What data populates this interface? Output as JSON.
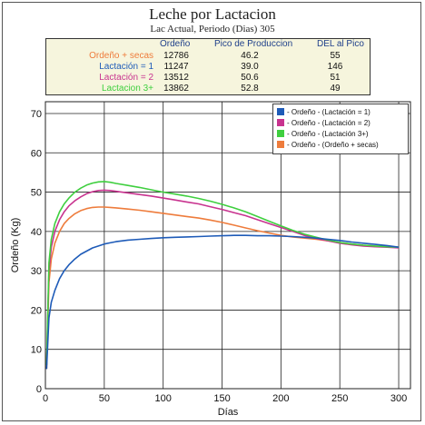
{
  "title": "Leche por Lactacion",
  "subtitle": "Lac Actual, Periodo (Dias) 305",
  "summary": {
    "headers": [
      "Ordeño",
      "Pico de Produccion",
      "DEL al Pico"
    ],
    "rows": [
      {
        "label": "Ordeño + secas",
        "color": "#ee7c3c",
        "ordeno": "12786",
        "pico": "46.2",
        "del": "55"
      },
      {
        "label": "Lactación = 1",
        "color": "#1e5bb8",
        "ordeno": "11247",
        "pico": "39.0",
        "del": "146"
      },
      {
        "label": "Lactación = 2",
        "color": "#c8338f",
        "ordeno": "13512",
        "pico": "50.6",
        "del": "51"
      },
      {
        "label": "Lactacion 3+",
        "color": "#3fcf3f",
        "ordeno": "13862",
        "pico": "52.8",
        "del": "49"
      }
    ]
  },
  "chart_data": {
    "type": "line",
    "xlabel": "Días",
    "ylabel": "Ordeño  (Kg)",
    "xlim": [
      0,
      310
    ],
    "ylim": [
      0,
      73
    ],
    "xticks": [
      0,
      50,
      100,
      150,
      200,
      250,
      300
    ],
    "yticks": [
      0,
      10,
      20,
      30,
      40,
      50,
      60,
      70
    ],
    "grid": true,
    "legend_position": "top-right",
    "x": [
      1,
      3,
      5,
      8,
      12,
      16,
      20,
      25,
      30,
      35,
      40,
      45,
      50,
      55,
      60,
      70,
      80,
      90,
      100,
      110,
      120,
      130,
      140,
      150,
      160,
      170,
      180,
      190,
      200,
      210,
      220,
      230,
      240,
      250,
      260,
      270,
      280,
      290,
      300
    ],
    "series": [
      {
        "name": "- Ordeño - (Lactación = 1)",
        "color": "#1e5bb8",
        "values": [
          5,
          18,
          22,
          25,
          28,
          30,
          31.5,
          33,
          34.2,
          35,
          35.8,
          36.3,
          36.8,
          37.1,
          37.4,
          37.8,
          38,
          38.2,
          38.4,
          38.5,
          38.6,
          38.7,
          38.8,
          38.9,
          39,
          39,
          38.9,
          38.9,
          38.8,
          38.7,
          38.5,
          38.3,
          38,
          37.7,
          37.3,
          37,
          36.7,
          36.4,
          36
        ]
      },
      {
        "name": "- Ordeño - (Lactación = 2)",
        "color": "#c8338f",
        "values": [
          6,
          30,
          36,
          40,
          43,
          45,
          46.5,
          47.8,
          48.8,
          49.6,
          50.1,
          50.4,
          50.5,
          50.4,
          50.2,
          49.8,
          49.4,
          49,
          48.5,
          48,
          47.5,
          47,
          46.3,
          45.6,
          44.8,
          44,
          43,
          42,
          41,
          40,
          39,
          38.2,
          37.6,
          37,
          36.6,
          36.3,
          36.1,
          36,
          35.8
        ]
      },
      {
        "name": "- Ordeño - (Lactación 3+)",
        "color": "#3fcf3f",
        "values": [
          6,
          32,
          38,
          42,
          45,
          47,
          48.5,
          50,
          51,
          51.8,
          52.3,
          52.6,
          52.7,
          52.5,
          52.2,
          51.7,
          51.2,
          50.6,
          50,
          49.5,
          49,
          48.4,
          47.7,
          46.9,
          46,
          45,
          43.8,
          42.6,
          41.4,
          40.3,
          39.3,
          38.5,
          37.8,
          37.2,
          36.8,
          36.5,
          36.3,
          36.1,
          36
        ]
      },
      {
        "name": "- Ordeño - (Ordeño + secas)",
        "color": "#ee7c3c",
        "values": [
          5,
          27,
          33,
          37,
          40,
          42,
          43.3,
          44.5,
          45.3,
          45.8,
          46.1,
          46.2,
          46.2,
          46.1,
          46,
          45.7,
          45.4,
          45,
          44.6,
          44.2,
          43.8,
          43.4,
          42.9,
          42.3,
          41.6,
          40.9,
          40.2,
          39.6,
          39,
          38.6,
          38.3,
          38,
          37.6,
          37.2,
          36.8,
          36.5,
          36.3,
          36.2,
          36
        ]
      }
    ]
  }
}
